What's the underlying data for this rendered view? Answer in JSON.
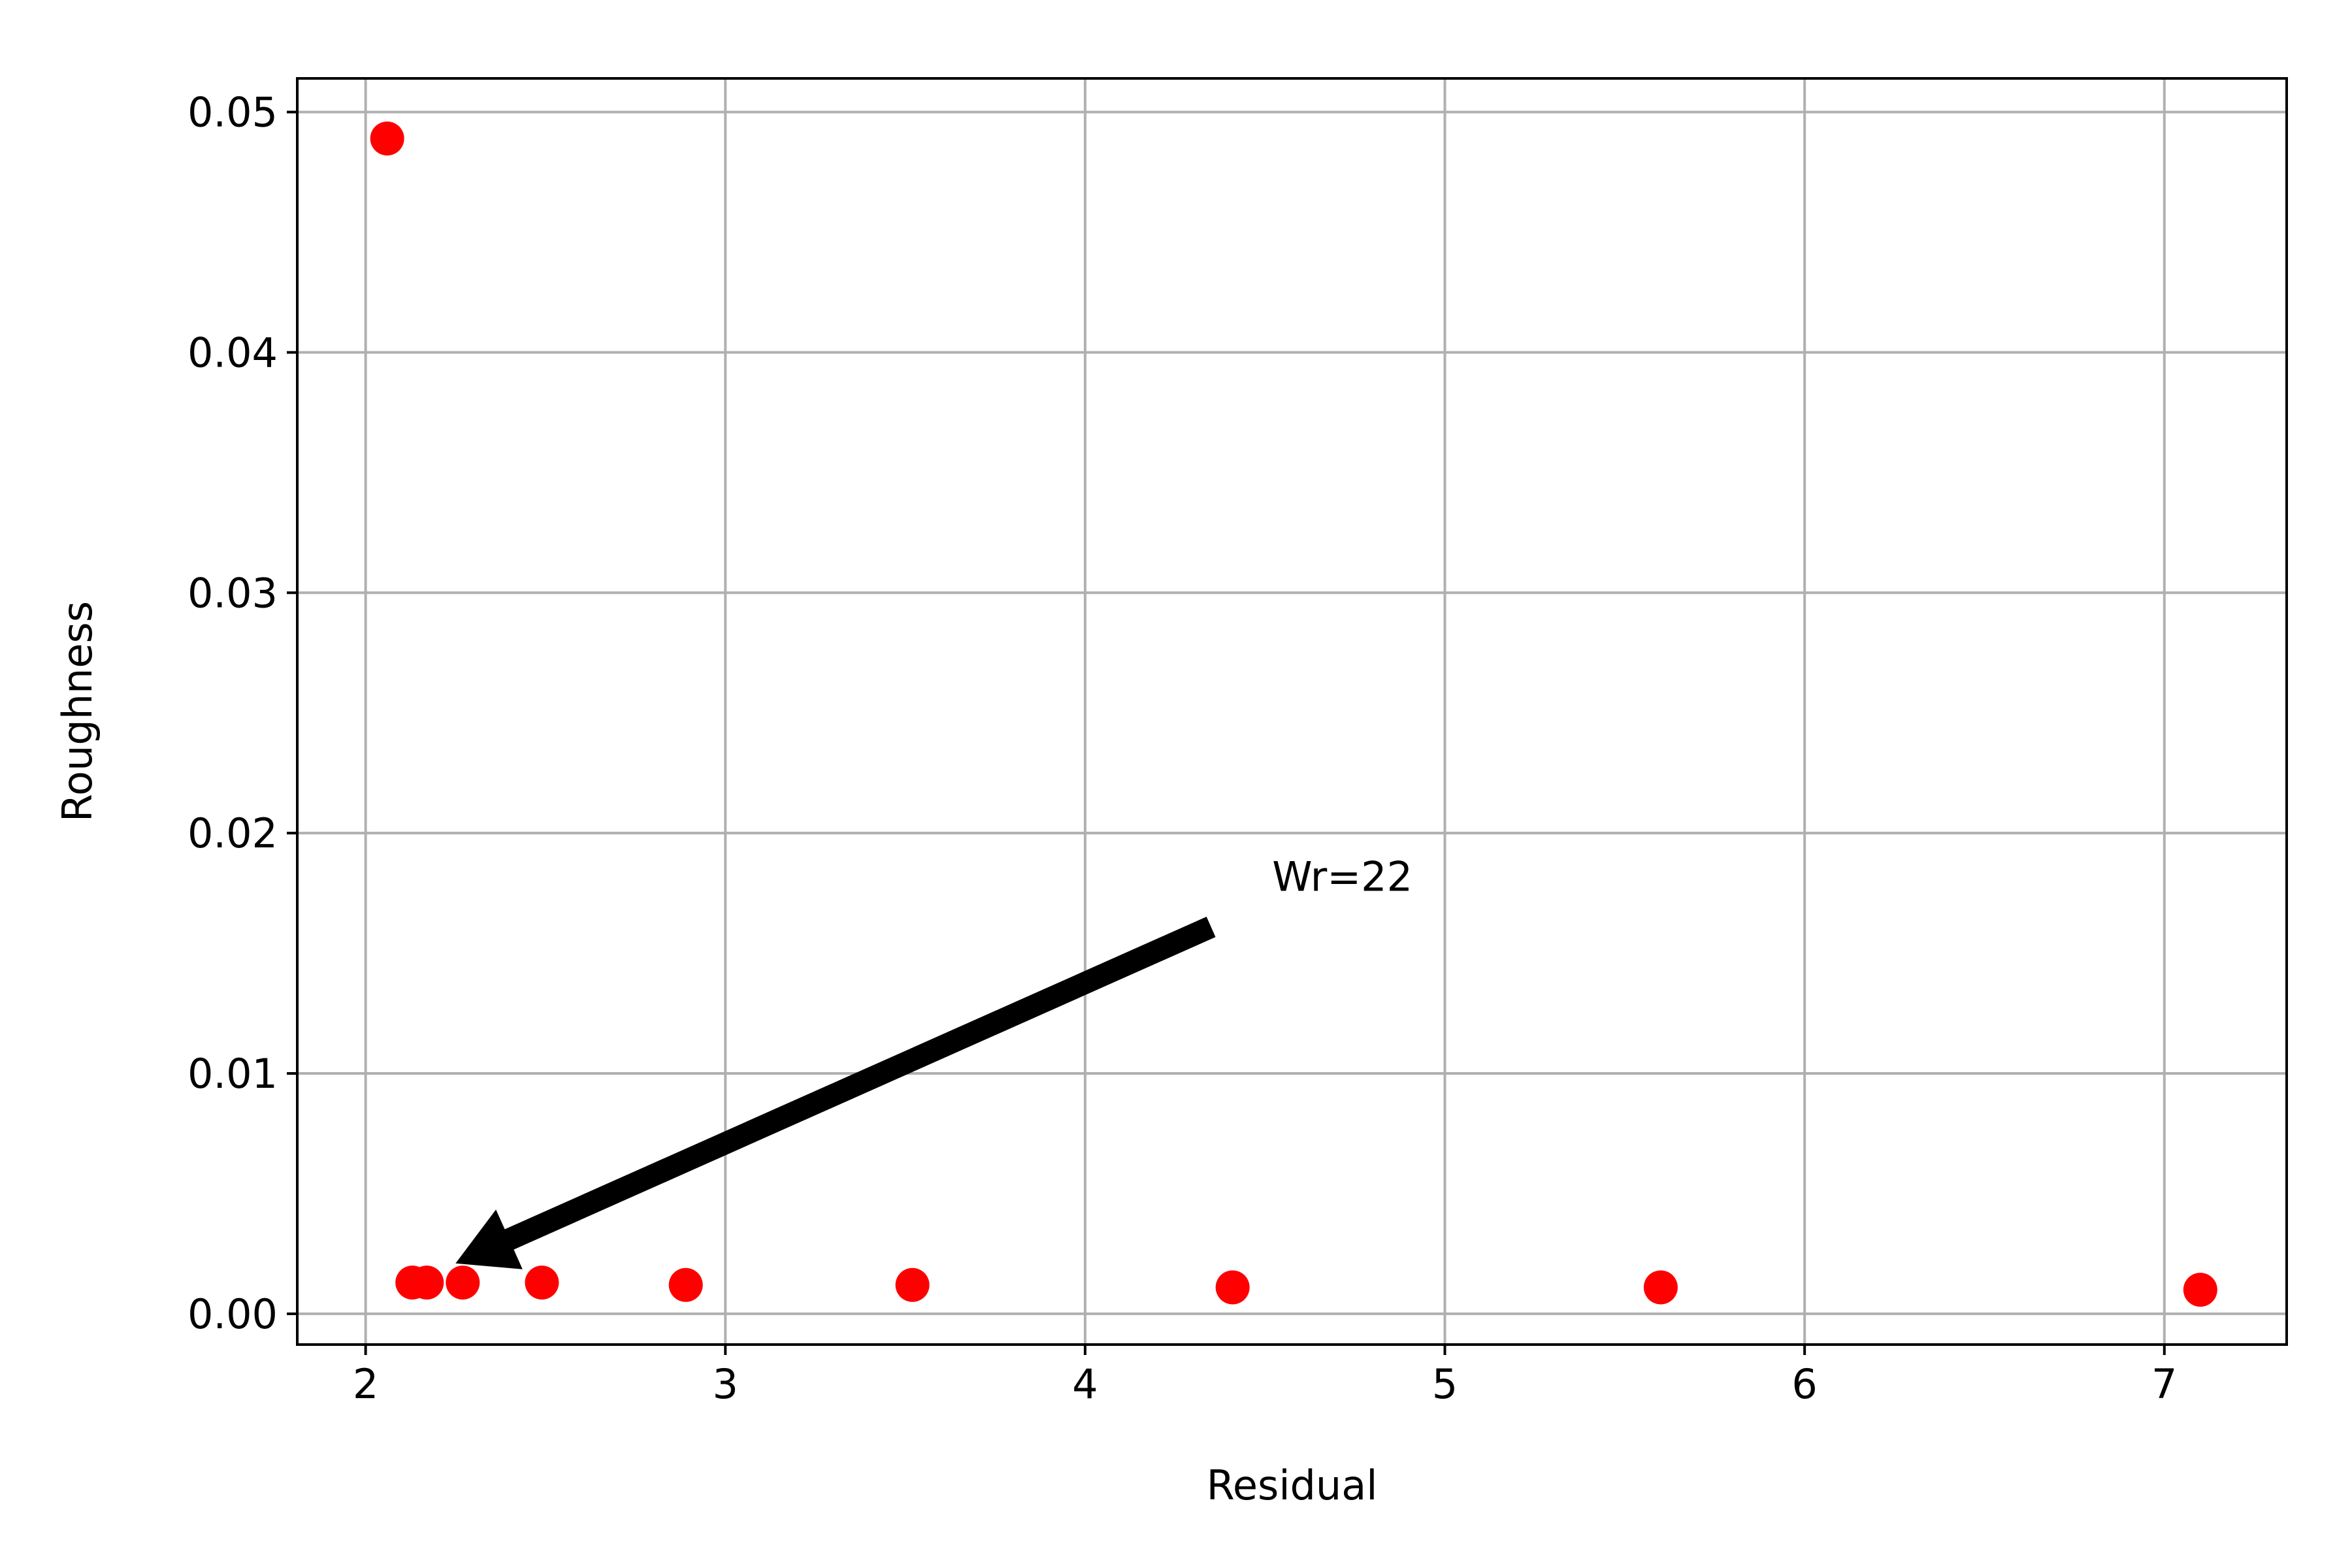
{
  "chart_data": {
    "type": "scatter",
    "xlabel": "Residual",
    "ylabel": "Roughness",
    "xlim": [
      1.81,
      7.34
    ],
    "ylim": [
      -0.00128,
      0.0514
    ],
    "x_ticks": [
      2,
      3,
      4,
      5,
      6,
      7
    ],
    "x_tick_labels": [
      "2",
      "3",
      "4",
      "5",
      "6",
      "7"
    ],
    "y_ticks": [
      0.0,
      0.01,
      0.02,
      0.03,
      0.04,
      0.05
    ],
    "y_tick_labels": [
      "0.00",
      "0.01",
      "0.02",
      "0.03",
      "0.04",
      "0.05"
    ],
    "grid": true,
    "marker_color": "#ff0000",
    "gridline_color": "#b0b0b0",
    "points": [
      {
        "x": 2.06,
        "y": 0.0489
      },
      {
        "x": 2.13,
        "y": 0.0013
      },
      {
        "x": 2.17,
        "y": 0.0013
      },
      {
        "x": 2.27,
        "y": 0.0013
      },
      {
        "x": 2.49,
        "y": 0.0013
      },
      {
        "x": 2.89,
        "y": 0.0012
      },
      {
        "x": 3.52,
        "y": 0.0012
      },
      {
        "x": 4.41,
        "y": 0.0011
      },
      {
        "x": 5.6,
        "y": 0.0011
      },
      {
        "x": 7.1,
        "y": 0.001
      }
    ],
    "annotation": {
      "text": "Wr=22",
      "text_x": 4.52,
      "text_y": 0.0176,
      "arrow_from": [
        4.35,
        0.0161
      ],
      "arrow_to": [
        2.25,
        0.0021
      ]
    }
  }
}
